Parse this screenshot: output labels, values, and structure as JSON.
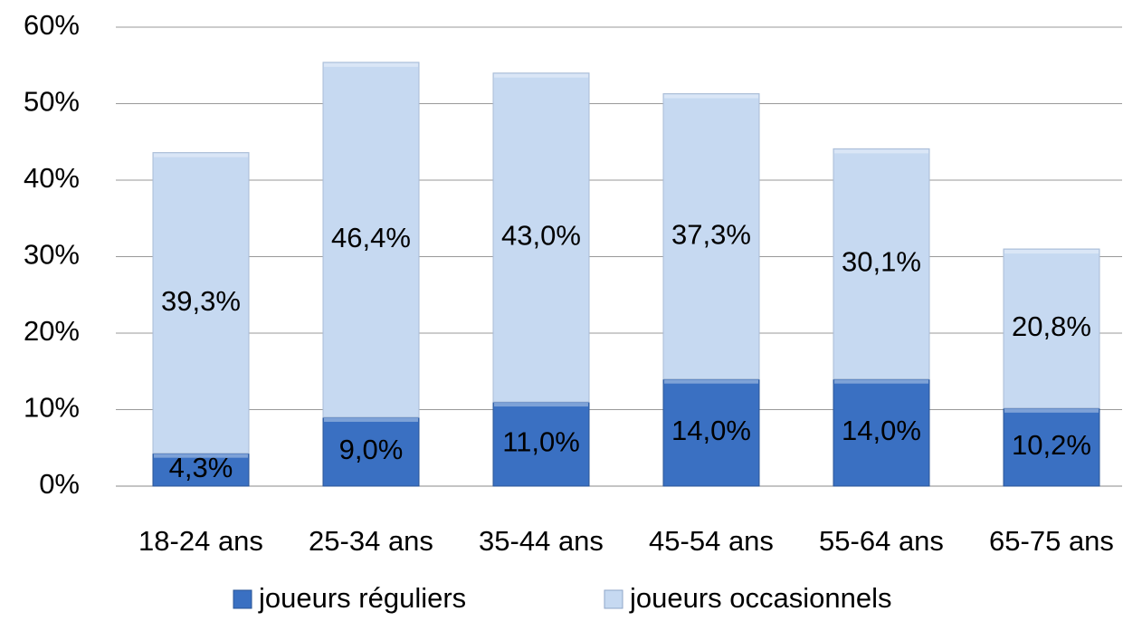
{
  "chart_data": {
    "type": "bar",
    "stacked": true,
    "categories": [
      "18-24 ans",
      "25-34 ans",
      "35-44 ans",
      "45-54 ans",
      "55-64 ans",
      "65-75 ans"
    ],
    "series": [
      {
        "name": "joueurs réguliers",
        "color": "#3a70c2",
        "values": [
          4.3,
          9.0,
          11.0,
          14.0,
          14.0,
          10.2
        ],
        "value_labels": [
          "4,3%",
          "9,0%",
          "11,0%",
          "14,0%",
          "14,0%",
          "10,2%"
        ]
      },
      {
        "name": "joueurs occasionnels",
        "color": "#c6d9f1",
        "values": [
          39.3,
          46.4,
          43.0,
          37.3,
          30.1,
          20.8
        ],
        "value_labels": [
          "39,3%",
          "46,4%",
          "43,0%",
          "37,3%",
          "30,1%",
          "20,8%"
        ]
      }
    ],
    "ylim": [
      0,
      60
    ],
    "yticks": [
      {
        "value": 0,
        "label": "0%"
      },
      {
        "value": 10,
        "label": "10%"
      },
      {
        "value": 20,
        "label": "20%"
      },
      {
        "value": 30,
        "label": "30%"
      },
      {
        "value": 40,
        "label": "40%"
      },
      {
        "value": 50,
        "label": "50%"
      },
      {
        "value": 60,
        "label": "60%"
      }
    ],
    "grid": true,
    "legend": "bottom"
  }
}
